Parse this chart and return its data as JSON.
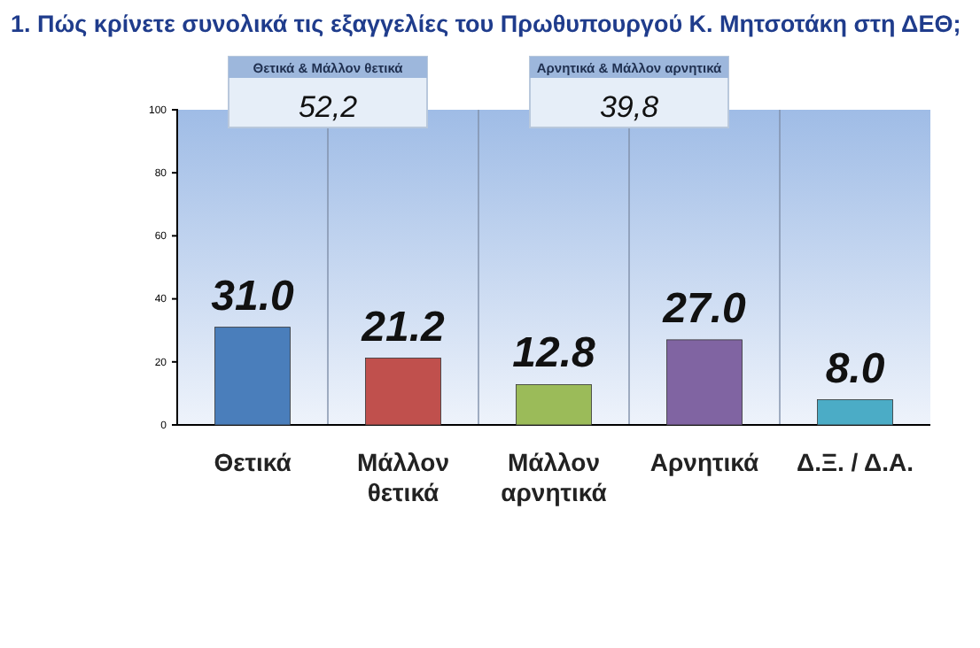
{
  "chart_data": {
    "type": "bar",
    "title": "1. Πώς κρίνετε συνολικά τις εξαγγελίες του Πρωθυπουργού Κ. Μητσοτάκη στη ΔΕΘ;",
    "categories": [
      "Θετικά",
      "Μάλλον θετικά",
      "Μάλλον αρνητικά",
      "Αρνητικά",
      "Δ.Ξ. / Δ.Α."
    ],
    "values": [
      31.0,
      21.2,
      12.8,
      27.0,
      8.0
    ],
    "colors": [
      "#4a7ebb",
      "#c0504d",
      "#9bbb59",
      "#8064a2",
      "#4bacc6"
    ],
    "value_labels": [
      "31.0",
      "21.2",
      "12.8",
      "27.0",
      "8.0"
    ],
    "ylim": [
      0,
      100
    ],
    "yticks": [
      0,
      20,
      40,
      60,
      80,
      100
    ],
    "grid": "x",
    "annotations": [
      "Θετικά & Μάλλον θετικά",
      "52,2",
      "Αρνητικά & Μάλλον αρνητικά",
      "39,8"
    ]
  }
}
